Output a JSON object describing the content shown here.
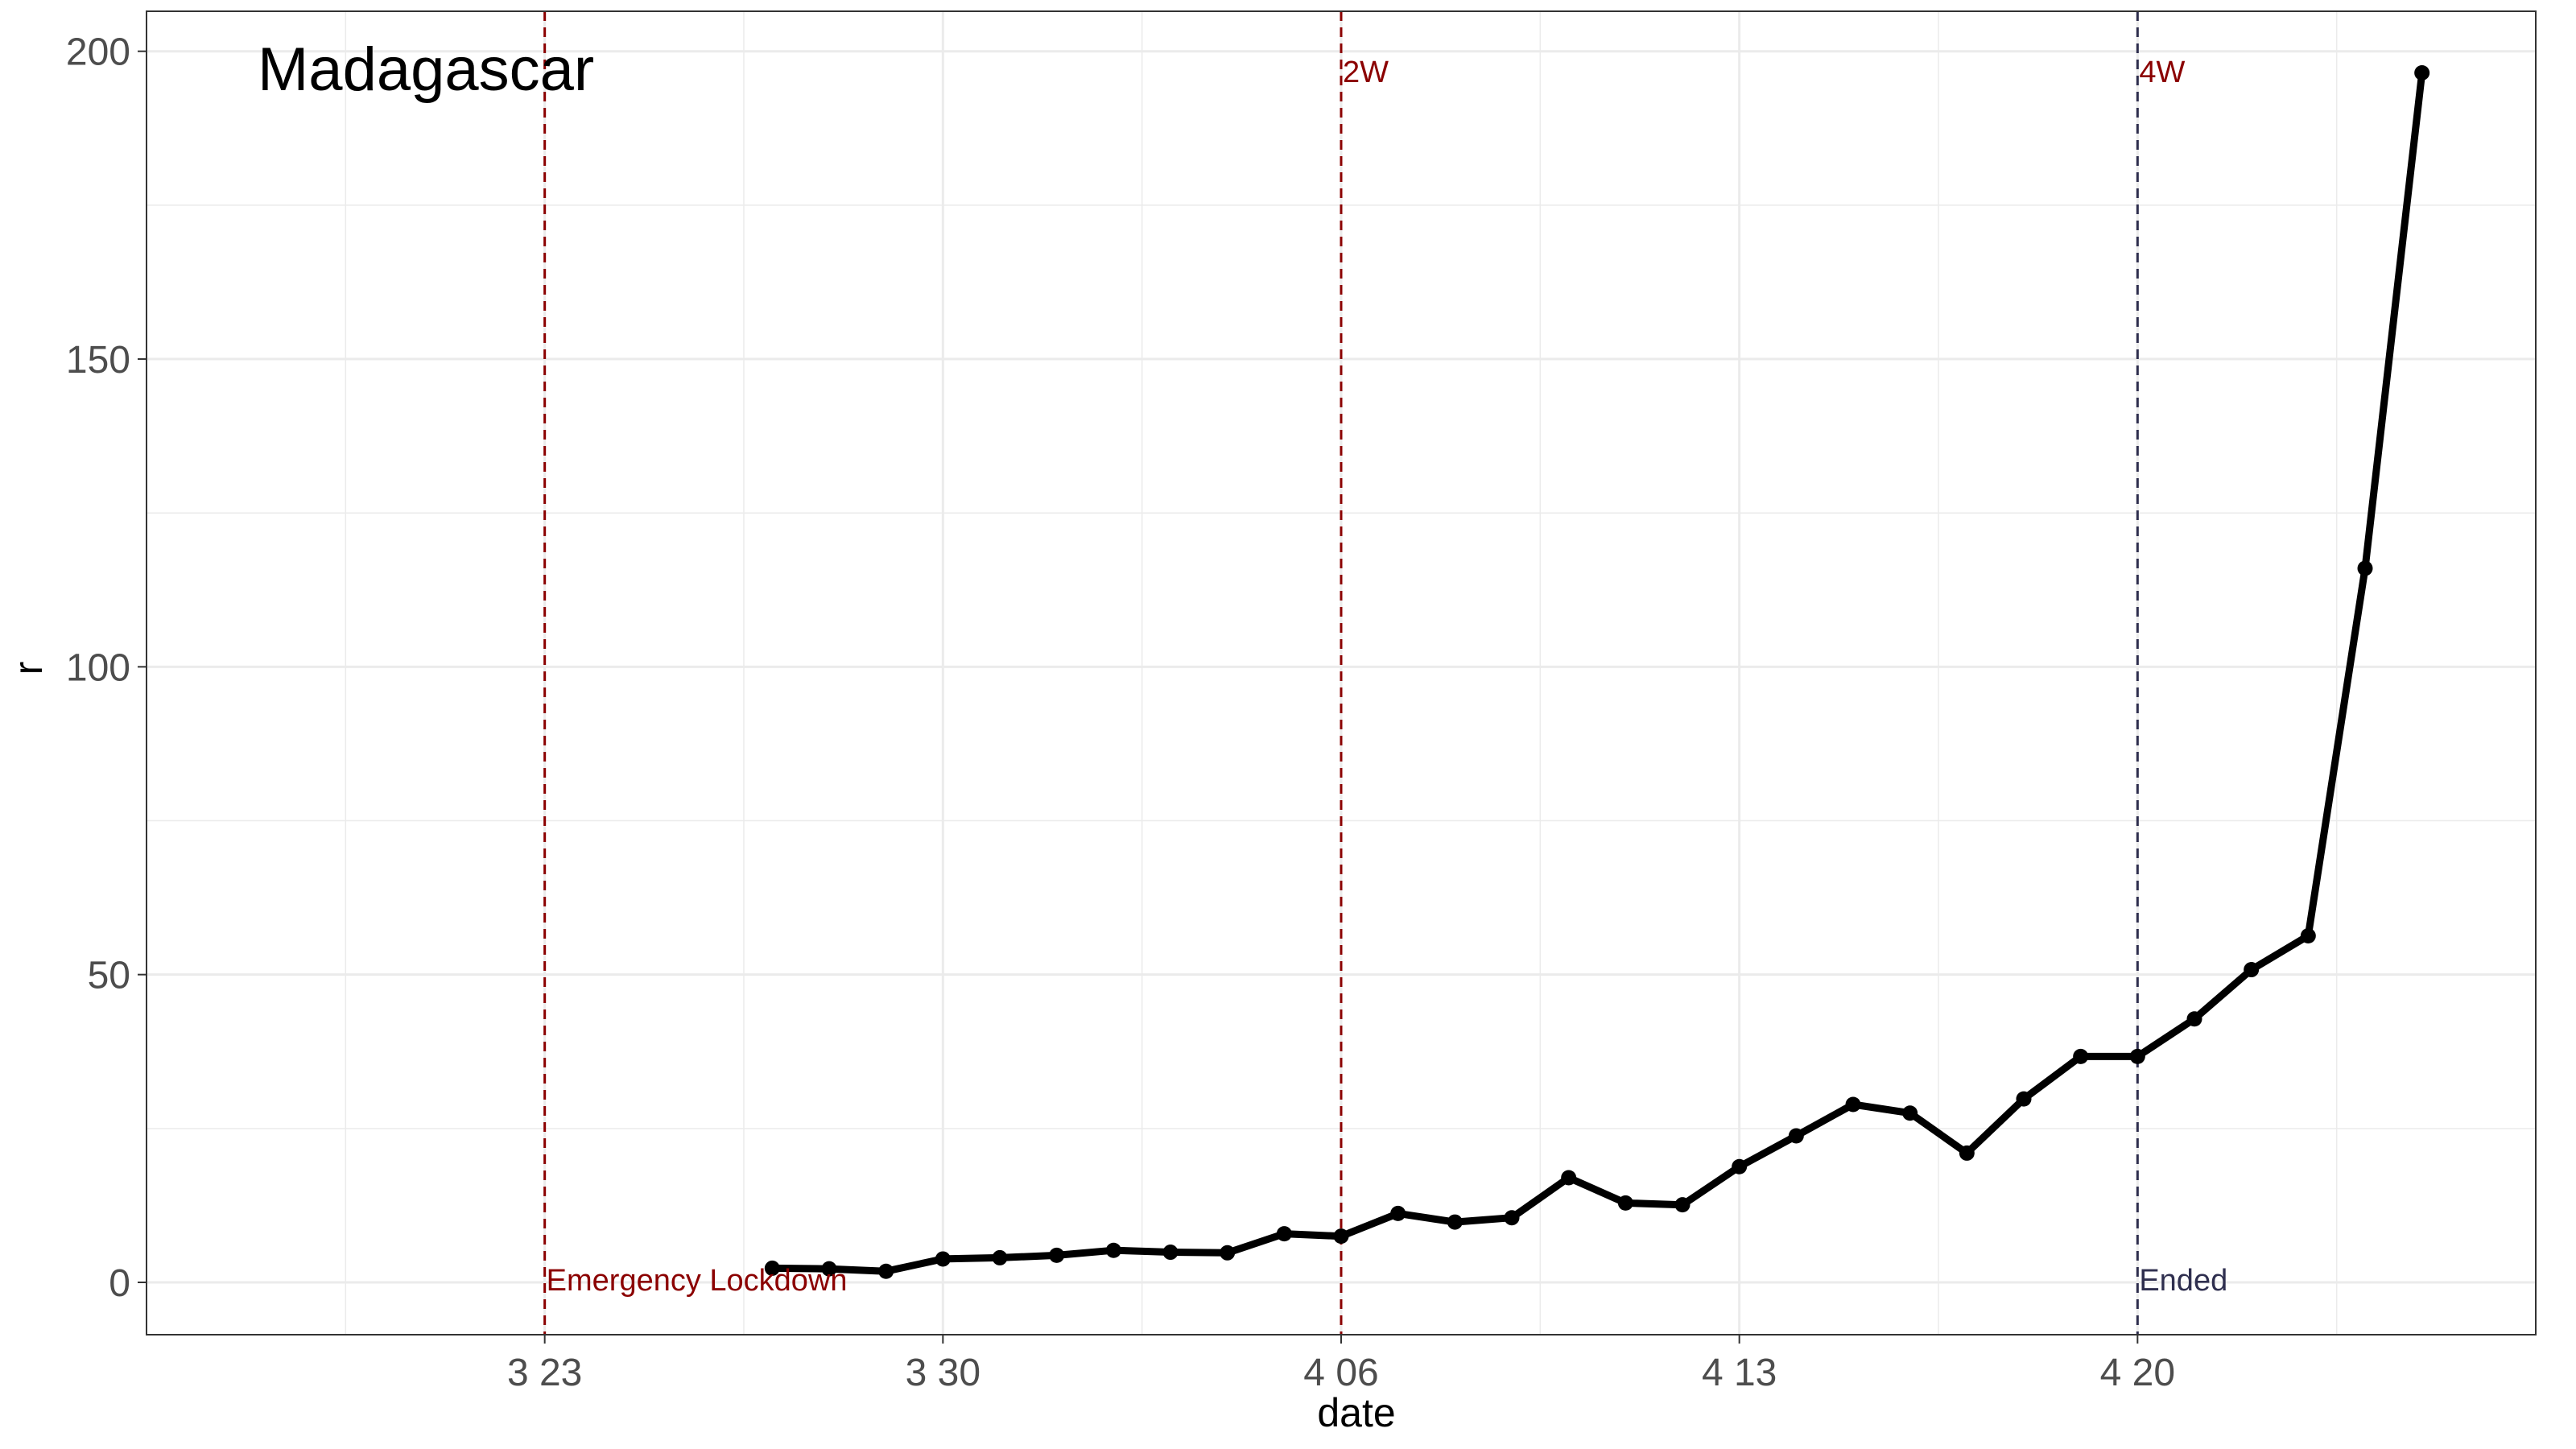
{
  "chart_data": {
    "type": "line",
    "title": "Madagascar",
    "xlabel": "date",
    "ylabel": "r",
    "x_tick_labels": [
      "3 23",
      "3 30",
      "4 06",
      "4 13",
      "4 20"
    ],
    "y_tick_labels": [
      "0",
      "50",
      "100",
      "150",
      "200"
    ],
    "y_ticks": [
      0,
      50,
      100,
      150,
      200
    ],
    "ylim": [
      -8.5,
      206.5
    ],
    "xlim": [
      "2020-03-16",
      "2020-04-27"
    ],
    "x_tick_dates": [
      "2020-03-23",
      "2020-03-30",
      "2020-04-06",
      "2020-04-13",
      "2020-04-20"
    ],
    "grid": true,
    "series": [
      {
        "x": [
          "2020-03-27",
          "2020-03-28",
          "2020-03-29",
          "2020-03-30",
          "2020-03-31",
          "2020-04-01",
          "2020-04-02",
          "2020-04-03",
          "2020-04-04",
          "2020-04-05",
          "2020-04-06",
          "2020-04-07",
          "2020-04-08",
          "2020-04-09",
          "2020-04-10",
          "2020-04-11",
          "2020-04-12",
          "2020-04-13",
          "2020-04-14",
          "2020-04-15",
          "2020-04-16",
          "2020-04-17",
          "2020-04-18",
          "2020-04-19",
          "2020-04-20",
          "2020-04-21",
          "2020-04-22",
          "2020-04-23",
          "2020-04-24",
          "2020-04-25"
        ],
        "y": [
          2.3,
          2.2,
          1.8,
          3.8,
          4.0,
          4.4,
          5.2,
          4.9,
          4.8,
          7.9,
          7.5,
          11.2,
          9.8,
          10.5,
          17.0,
          12.9,
          12.6,
          18.8,
          23.8,
          28.9,
          27.5,
          21.0,
          29.8,
          36.7,
          36.7,
          42.8,
          50.8,
          56.3,
          116.0,
          196.5
        ],
        "color": "#000000"
      }
    ],
    "annotations": [
      {
        "date": "2020-03-23",
        "label": "Emergency Lockdown",
        "label_position": "bottom",
        "color": "#8b0000"
      },
      {
        "date": "2020-04-06",
        "label": "2W",
        "label_position": "top",
        "color": "#8b0000"
      },
      {
        "date": "2020-04-20",
        "label": "4W",
        "label_position": "top",
        "color": "#8b0000",
        "line_color": "#2f2f4f"
      },
      {
        "date": "2020-04-20",
        "label": "Ended",
        "label_position": "bottom",
        "color": "#2f2f4f",
        "line_color": "#2f2f4f"
      }
    ],
    "colors": {
      "tick_text": "#4d4d4d",
      "axis_title": "#000000",
      "grid": "#ebebeb",
      "border": "#333333",
      "lockdown": "#8b0000",
      "ended": "#2f2f4f"
    }
  }
}
